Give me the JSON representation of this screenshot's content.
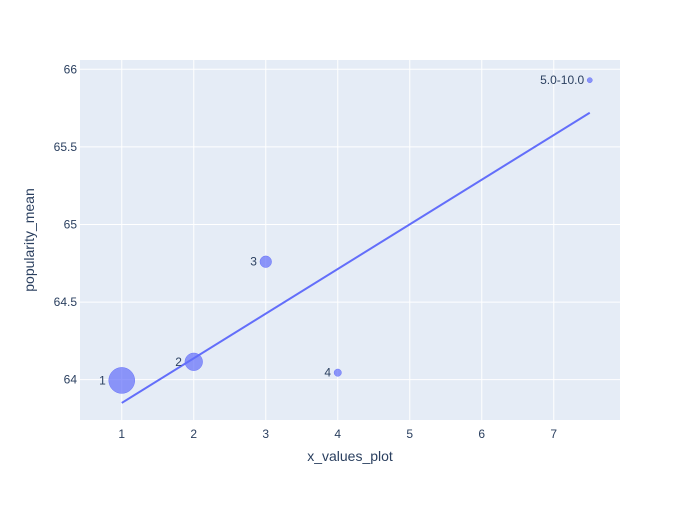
{
  "chart_data": {
    "type": "scatter",
    "title": "",
    "xlabel": "x_values_plot",
    "ylabel": "popularity_mean",
    "xlim": [
      0.42,
      7.92
    ],
    "ylim": [
      63.74,
      66.06
    ],
    "x_ticks": [
      1,
      2,
      3,
      4,
      5,
      6,
      7
    ],
    "y_ticks": [
      64,
      64.5,
      65,
      65.5,
      66
    ],
    "x_tick_labels": [
      "1",
      "2",
      "3",
      "4",
      "5",
      "6",
      "7"
    ],
    "y_tick_labels": [
      "64",
      "64.5",
      "65",
      "65.5",
      "66"
    ],
    "grid": true,
    "legend": "none",
    "points": [
      {
        "label": "1",
        "x": 1,
        "y": 63.995,
        "relative_size": 1.0
      },
      {
        "label": "2",
        "x": 2,
        "y": 64.115,
        "relative_size": 0.46
      },
      {
        "label": "3",
        "x": 3,
        "y": 64.76,
        "relative_size": 0.2
      },
      {
        "label": "4",
        "x": 4,
        "y": 64.045,
        "relative_size": 0.08
      },
      {
        "label": "5.0-10.0",
        "x": 7.5,
        "y": 65.93,
        "relative_size": 0.04
      }
    ],
    "trendline": {
      "x": [
        1,
        7.5
      ],
      "y": [
        63.85,
        65.72
      ]
    },
    "colors": {
      "marker": "#636efa",
      "trendline": "#636efa",
      "plot_background": "#e5ecf6",
      "grid": "#ffffff",
      "text": "#2a3f5f"
    }
  }
}
